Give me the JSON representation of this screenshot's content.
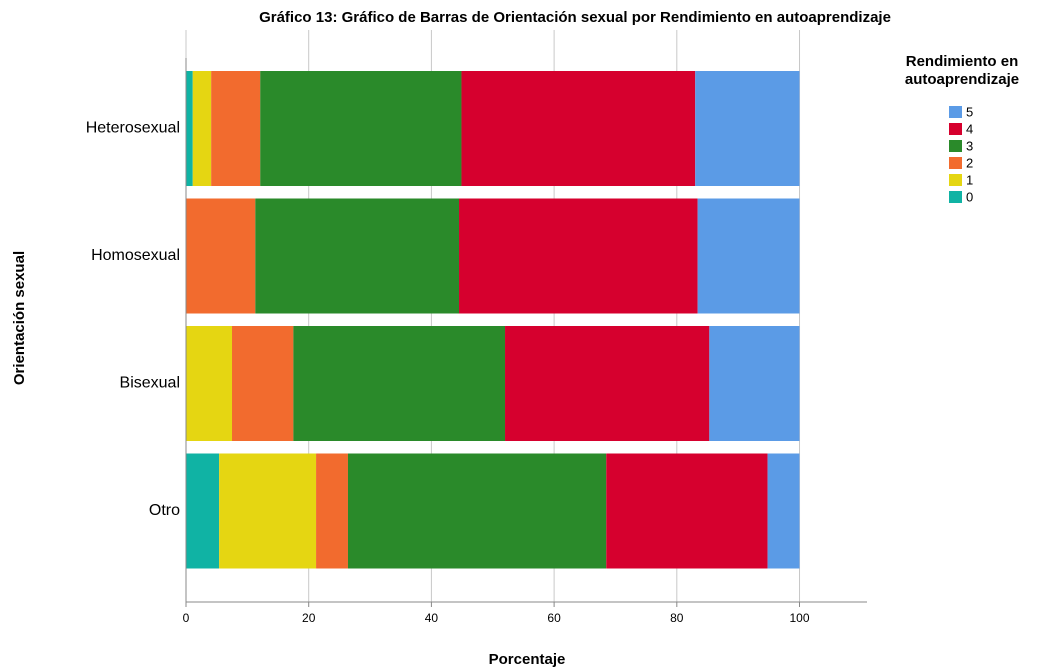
{
  "chart_data": {
    "type": "bar",
    "orientation": "horizontal",
    "stacked": true,
    "title": "Gráfico 13: Gráfico de Barras de Orientación sexual por Rendimiento en autoaprendizaje",
    "x_label": "Porcentaje",
    "y_label": "Orientación sexual",
    "legend_title": [
      "Rendimiento en",
      "autoaprendizaje"
    ],
    "categories": [
      "Heterosexual",
      "Homosexual",
      "Bisexual",
      "Otro"
    ],
    "series": [
      {
        "name": "0",
        "color": "#10b3a4",
        "values": [
          1.1,
          0,
          0,
          5.4
        ]
      },
      {
        "name": "1",
        "color": "#e5d612",
        "values": [
          3.0,
          0,
          7.5,
          15.8
        ]
      },
      {
        "name": "2",
        "color": "#f26b2e",
        "values": [
          8.0,
          11.3,
          10.0,
          5.2
        ]
      },
      {
        "name": "3",
        "color": "#2a8a2a",
        "values": [
          32.8,
          33.2,
          34.5,
          42.1
        ]
      },
      {
        "name": "4",
        "color": "#d6002e",
        "values": [
          38.1,
          38.9,
          33.3,
          26.3
        ]
      },
      {
        "name": "5",
        "color": "#5b9be6",
        "values": [
          17.0,
          16.6,
          14.7,
          5.2
        ]
      }
    ],
    "xlim": [
      0,
      111
    ],
    "xticks": [
      0,
      20,
      40,
      60,
      80,
      100
    ],
    "grid": true
  }
}
